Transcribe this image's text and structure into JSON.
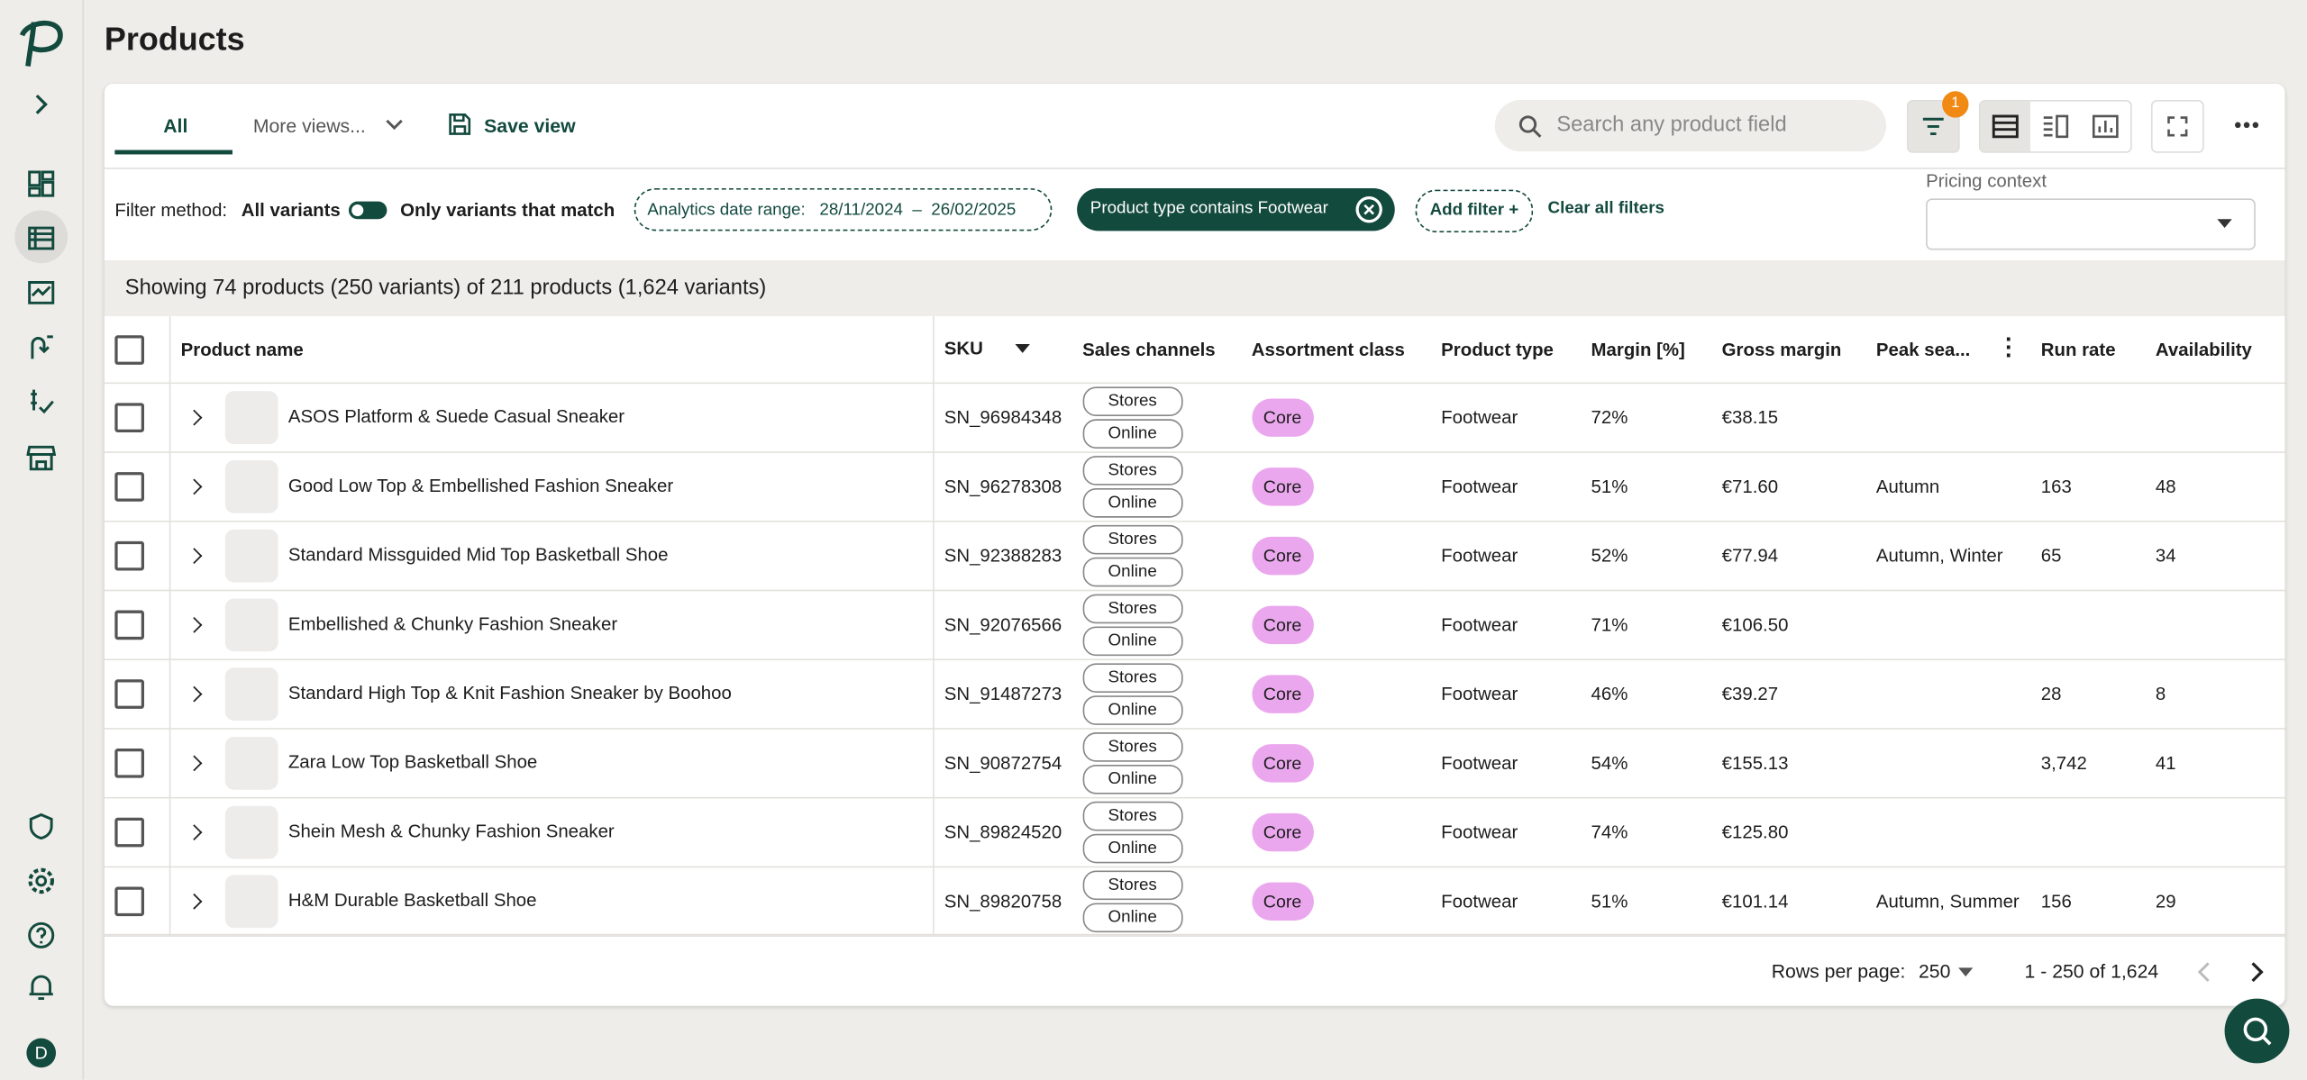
{
  "header": {
    "title": "Products",
    "avatar": "D"
  },
  "tabs": {
    "all": "All",
    "more": "More views...",
    "save": "Save view"
  },
  "toolbar": {
    "search_placeholder": "Search any product field",
    "filter_count": "1"
  },
  "filters": {
    "method_label": "Filter method:",
    "all_variants": "All variants",
    "only_match": "Only variants that match",
    "date_label": "Analytics date range:",
    "date_from": "28/11/2024",
    "date_sep": "–",
    "date_to": "26/02/2025",
    "chip": "Product type contains Footwear",
    "add": "Add filter +",
    "clear": "Clear all filters",
    "pricing_context": "Pricing context"
  },
  "summary": "Showing 74 products (250 variants) of 211 products (1,624 variants)",
  "table": {
    "columns": [
      "Product name",
      "SKU",
      "Sales channels",
      "Assortment class",
      "Product type",
      "Margin [%]",
      "Gross margin",
      "Peak sea...",
      "Run rate",
      "Availability"
    ],
    "rows": [
      {
        "name": "ASOS Platform & Suede Casual Sneaker",
        "sku": "SN_96984348",
        "channels": [
          "Stores",
          "Online"
        ],
        "assortment": "Core",
        "type": "Footwear",
        "margin": "72%",
        "gross_margin": "€38.15",
        "peak": null,
        "run_rate": null,
        "availability": null
      },
      {
        "name": "Good Low Top & Embellished Fashion Sneaker",
        "sku": "SN_96278308",
        "channels": [
          "Stores",
          "Online"
        ],
        "assortment": "Core",
        "type": "Footwear",
        "margin": "51%",
        "gross_margin": "€71.60",
        "peak": "Autumn",
        "run_rate": "163",
        "availability": "48"
      },
      {
        "name": "Standard Missguided Mid Top Basketball Shoe",
        "sku": "SN_92388283",
        "channels": [
          "Stores",
          "Online"
        ],
        "assortment": "Core",
        "type": "Footwear",
        "margin": "52%",
        "gross_margin": "€77.94",
        "peak": "Autumn, Winter",
        "run_rate": "65",
        "availability": "34"
      },
      {
        "name": "Embellished & Chunky Fashion Sneaker",
        "sku": "SN_92076566",
        "channels": [
          "Stores",
          "Online"
        ],
        "assortment": "Core",
        "type": "Footwear",
        "margin": "71%",
        "gross_margin": "€106.50",
        "peak": null,
        "run_rate": null,
        "availability": null
      },
      {
        "name": "Standard High Top & Knit Fashion Sneaker by Boohoo",
        "sku": "SN_91487273",
        "channels": [
          "Stores",
          "Online"
        ],
        "assortment": "Core",
        "type": "Footwear",
        "margin": "46%",
        "gross_margin": "€39.27",
        "peak": null,
        "run_rate": "28",
        "availability": "8"
      },
      {
        "name": "Zara Low Top Basketball Shoe",
        "sku": "SN_90872754",
        "channels": [
          "Stores",
          "Online"
        ],
        "assortment": "Core",
        "type": "Footwear",
        "margin": "54%",
        "gross_margin": "€155.13",
        "peak": null,
        "run_rate": "3,742",
        "availability": "41"
      },
      {
        "name": "Shein Mesh & Chunky Fashion Sneaker",
        "sku": "SN_89824520",
        "channels": [
          "Stores",
          "Online"
        ],
        "assortment": "Core",
        "type": "Footwear",
        "margin": "74%",
        "gross_margin": "€125.80",
        "peak": null,
        "run_rate": null,
        "availability": null
      },
      {
        "name": "H&M Durable Basketball Shoe",
        "sku": "SN_89820758",
        "channels": [
          "Stores",
          "Online"
        ],
        "assortment": "Core",
        "type": "Footwear",
        "margin": "51%",
        "gross_margin": "€101.14",
        "peak": "Autumn, Summer",
        "run_rate": "156",
        "availability": "29"
      }
    ]
  },
  "footer": {
    "rows_label": "Rows per page:",
    "rows_value": "250",
    "range": "1 - 250 of 1,624"
  }
}
